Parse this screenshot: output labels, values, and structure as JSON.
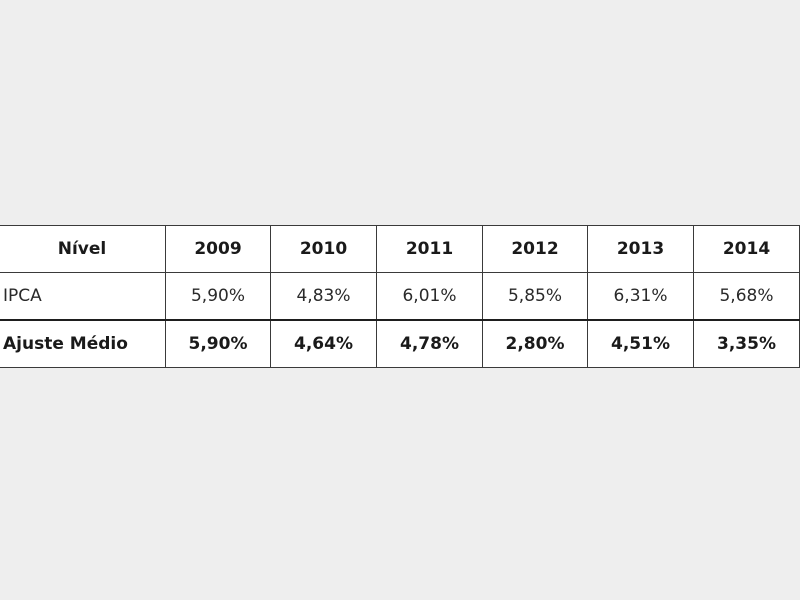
{
  "table": {
    "header": {
      "label": "Nível",
      "years": [
        "2009",
        "2010",
        "2011",
        "2012",
        "2013",
        "2014"
      ]
    },
    "rows": [
      {
        "label": "IPCA",
        "values": [
          "5,90%",
          "4,83%",
          "6,01%",
          "5,85%",
          "6,31%",
          "5,68%"
        ]
      },
      {
        "label": "Ajuste Médio",
        "values": [
          "5,90%",
          "4,64%",
          "4,78%",
          "2,80%",
          "4,51%",
          "3,35%"
        ]
      }
    ]
  }
}
